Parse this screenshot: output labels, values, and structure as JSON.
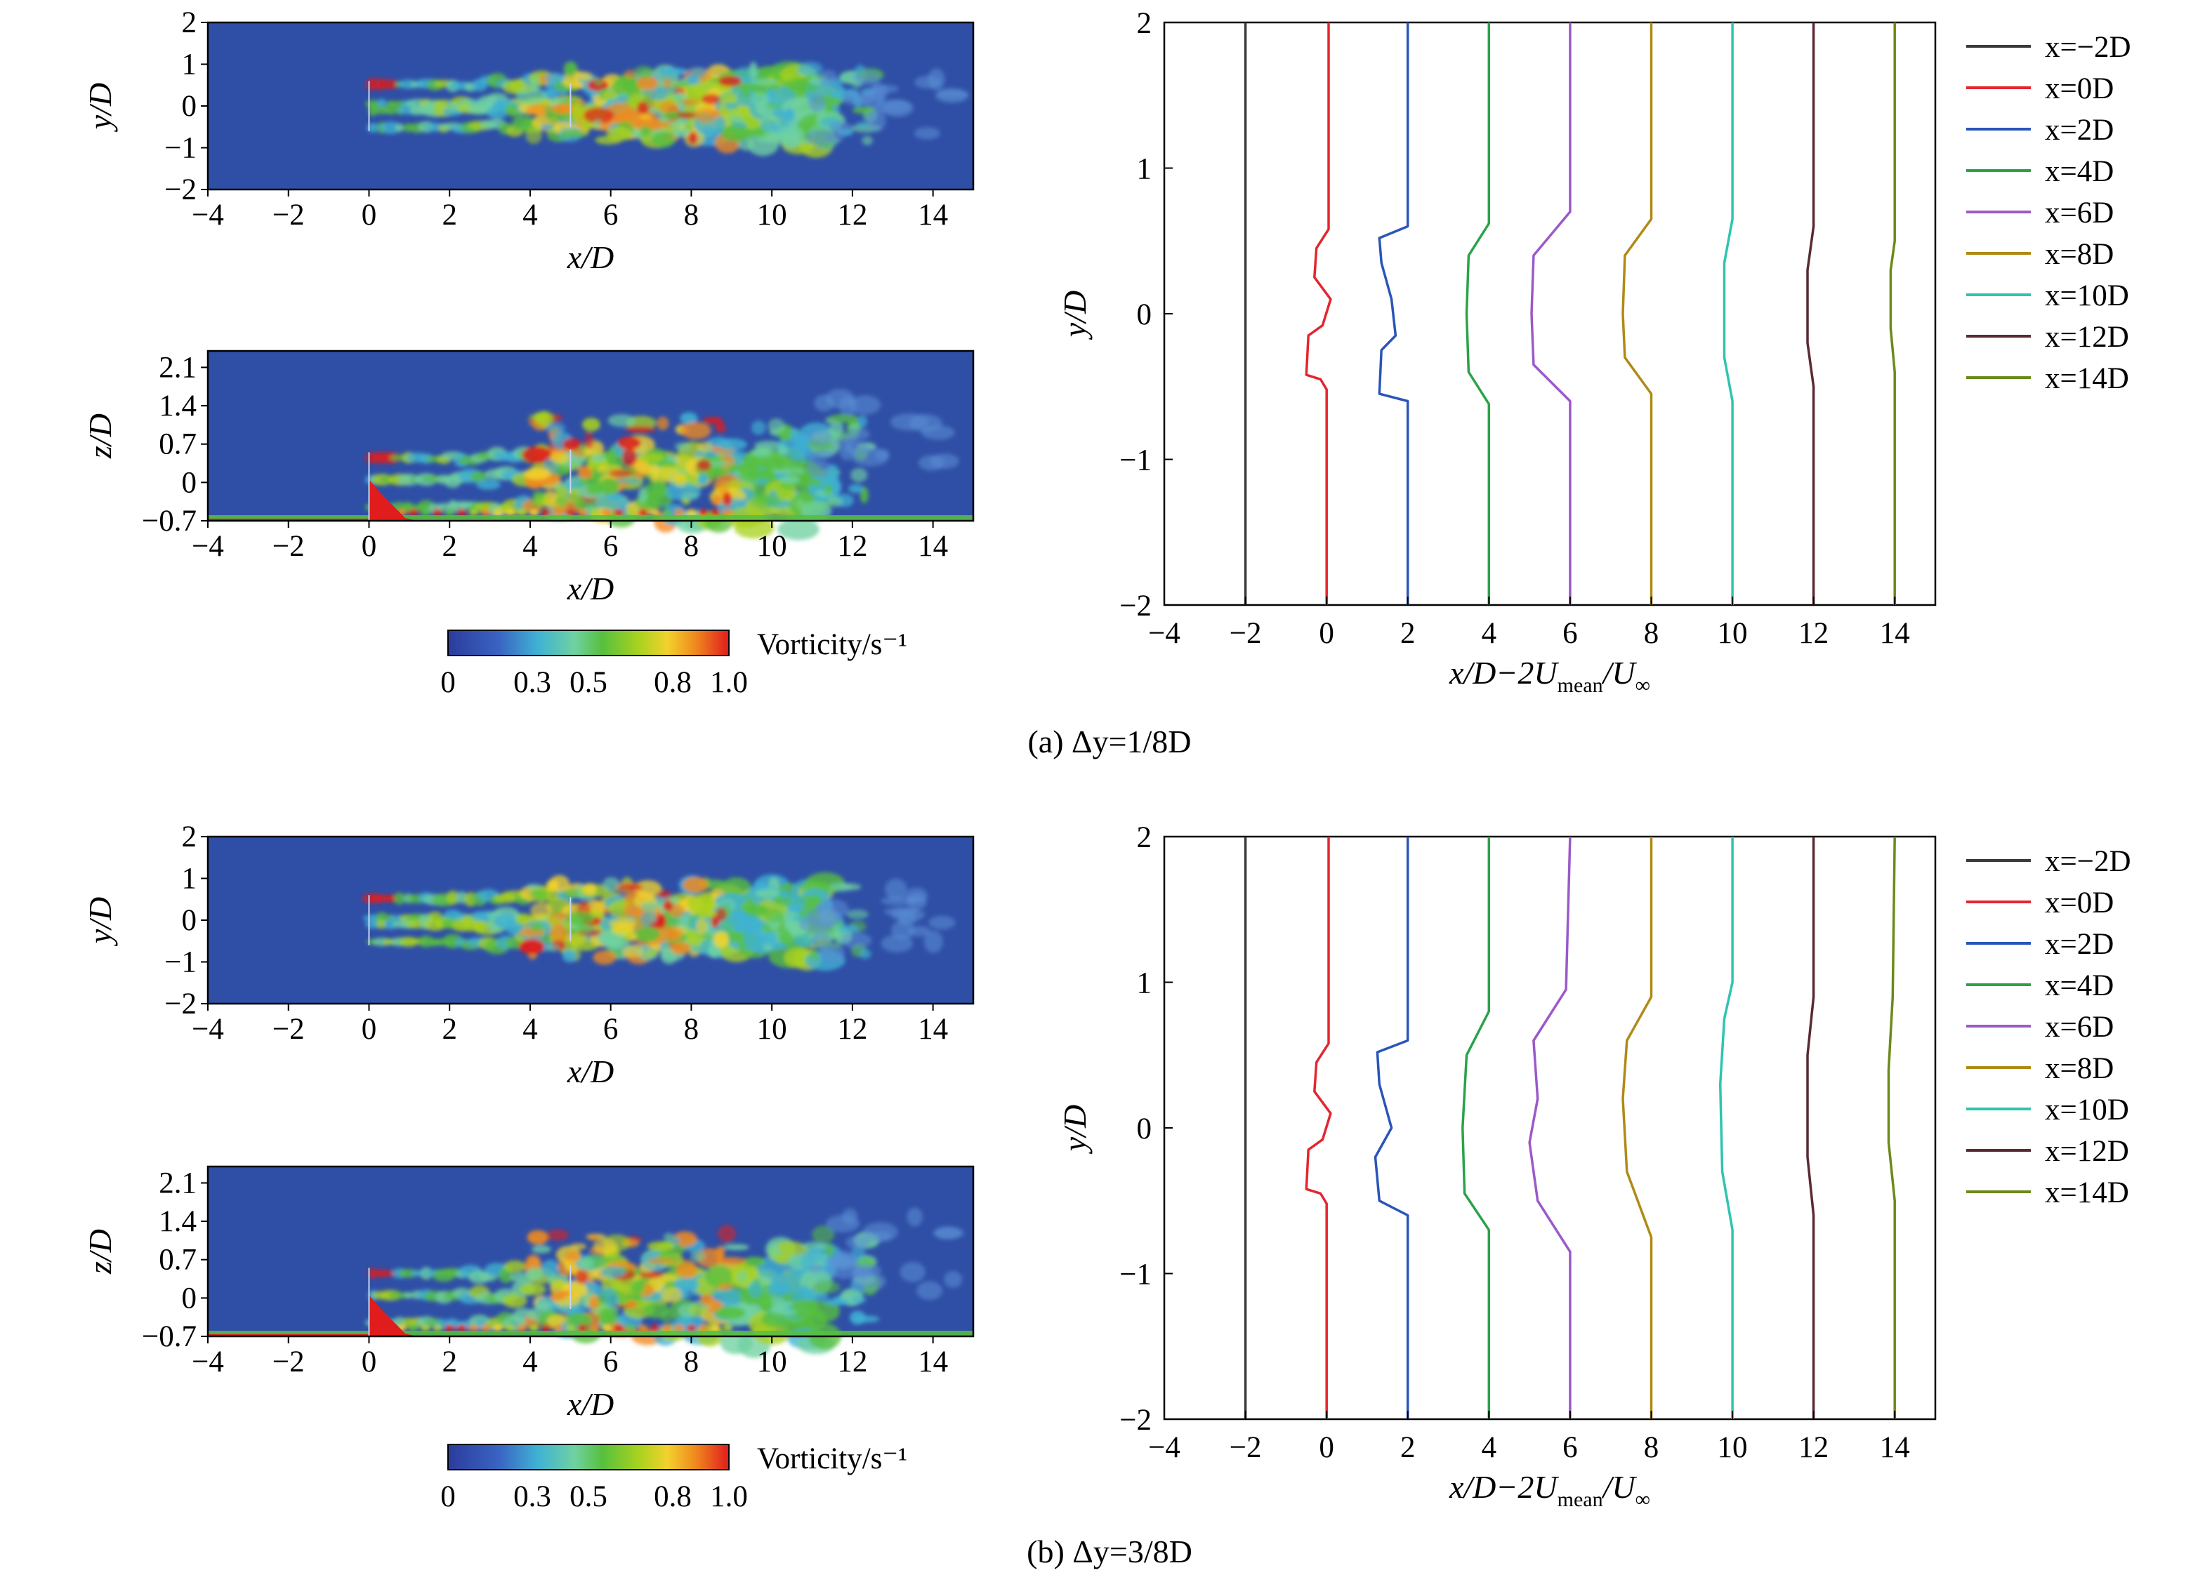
{
  "colors": {
    "background_field": "#2f4fa6",
    "axis": "#000000",
    "series_colors": [
      "#3a3a3a",
      "#e3262f",
      "#2a55b8",
      "#2ba24a",
      "#9b59c9",
      "#b08a16",
      "#2fc4b0",
      "#5a2a32",
      "#6b8a1a"
    ]
  },
  "panels": [
    {
      "caption": "(a) Δy=1/8D",
      "contour_top": {
        "ylabel": "y/D",
        "xlabel": "x/D",
        "yticks": [
          "2",
          "1",
          "0",
          "−1",
          "−2"
        ],
        "xticks": [
          "−4",
          "−2",
          "0",
          "2",
          "4",
          "6",
          "8",
          "10",
          "12",
          "14"
        ]
      },
      "contour_bottom": {
        "ylabel": "z/D",
        "xlabel": "x/D",
        "yticks": [
          "2.1",
          "1.4",
          "0.7",
          "0",
          "−0.7"
        ],
        "xticks": [
          "−4",
          "−2",
          "0",
          "2",
          "4",
          "6",
          "8",
          "10",
          "12",
          "14"
        ]
      },
      "colorbar": {
        "label": "Vorticity/s⁻¹",
        "ticks": [
          "0",
          "0.3",
          "0.5",
          "0.8",
          "1.0"
        ]
      },
      "profile": {
        "ylabel": "y/D",
        "xlabel": "x/D−2U",
        "xlabel_sub1": "mean",
        "xlabel_mid": "/U",
        "xlabel_sub2": "∞",
        "legend": [
          "x=−2D",
          "x=0D",
          "x=2D",
          "x=4D",
          "x=6D",
          "x=8D",
          "x=10D",
          "x=12D",
          "x=14D"
        ]
      }
    },
    {
      "caption": "(b) Δy=3/8D",
      "contour_top": {
        "ylabel": "y/D",
        "xlabel": "x/D",
        "yticks": [
          "2",
          "1",
          "0",
          "−1",
          "−2"
        ],
        "xticks": [
          "−4",
          "−2",
          "0",
          "2",
          "4",
          "6",
          "8",
          "10",
          "12",
          "14"
        ]
      },
      "contour_bottom": {
        "ylabel": "z/D",
        "xlabel": "x/D",
        "yticks": [
          "2.1",
          "1.4",
          "0.7",
          "0",
          "−0.7"
        ],
        "xticks": [
          "−4",
          "−2",
          "0",
          "2",
          "4",
          "6",
          "8",
          "10",
          "12",
          "14"
        ]
      },
      "colorbar": {
        "label": "Vorticity/s⁻¹",
        "ticks": [
          "0",
          "0.3",
          "0.5",
          "0.8",
          "1.0"
        ]
      },
      "profile": {
        "ylabel": "y/D",
        "xlabel": "x/D−2U",
        "xlabel_sub1": "mean",
        "xlabel_mid": "/U",
        "xlabel_sub2": "∞",
        "legend": [
          "x=−2D",
          "x=0D",
          "x=2D",
          "x=4D",
          "x=6D",
          "x=8D",
          "x=10D",
          "x=12D",
          "x=14D"
        ]
      }
    }
  ],
  "chart_data": [
    {
      "type": "line",
      "xlim": [
        -4,
        15
      ],
      "ylim": [
        -2,
        2
      ],
      "xticks": [
        -4,
        -2,
        0,
        2,
        4,
        6,
        8,
        10,
        12,
        14
      ],
      "yticks": [
        -2,
        -1,
        0,
        1,
        2
      ],
      "grid": false,
      "legend_position": "right",
      "series": [
        {
          "name": "x=−2D",
          "points": [
            [
              -2.0,
              -2.0
            ],
            [
              -2.0,
              2.0
            ]
          ]
        },
        {
          "name": "x=0D",
          "points": [
            [
              0.0,
              -2.0
            ],
            [
              0.0,
              -0.52
            ],
            [
              -0.15,
              -0.45
            ],
            [
              -0.5,
              -0.42
            ],
            [
              -0.45,
              -0.15
            ],
            [
              -0.1,
              -0.08
            ],
            [
              0.1,
              0.1
            ],
            [
              -0.3,
              0.25
            ],
            [
              -0.25,
              0.45
            ],
            [
              0.05,
              0.58
            ],
            [
              0.05,
              2.0
            ]
          ]
        },
        {
          "name": "x=2D",
          "points": [
            [
              2.0,
              -2.0
            ],
            [
              2.0,
              -0.6
            ],
            [
              1.3,
              -0.55
            ],
            [
              1.35,
              -0.25
            ],
            [
              1.7,
              -0.15
            ],
            [
              1.6,
              0.1
            ],
            [
              1.35,
              0.35
            ],
            [
              1.3,
              0.52
            ],
            [
              2.0,
              0.6
            ],
            [
              2.0,
              2.0
            ]
          ]
        },
        {
          "name": "x=4D",
          "points": [
            [
              4.0,
              -2.0
            ],
            [
              4.0,
              -0.62
            ],
            [
              3.5,
              -0.4
            ],
            [
              3.45,
              0.0
            ],
            [
              3.5,
              0.4
            ],
            [
              4.0,
              0.62
            ],
            [
              4.0,
              2.0
            ]
          ]
        },
        {
          "name": "x=6D",
          "points": [
            [
              6.0,
              -2.0
            ],
            [
              6.0,
              -0.6
            ],
            [
              5.1,
              -0.35
            ],
            [
              5.05,
              0.0
            ],
            [
              5.1,
              0.4
            ],
            [
              6.0,
              0.7
            ],
            [
              6.0,
              2.0
            ]
          ]
        },
        {
          "name": "x=8D",
          "points": [
            [
              8.0,
              -2.0
            ],
            [
              8.0,
              -0.55
            ],
            [
              7.35,
              -0.3
            ],
            [
              7.3,
              0.0
            ],
            [
              7.35,
              0.4
            ],
            [
              8.0,
              0.65
            ],
            [
              8.0,
              2.0
            ]
          ]
        },
        {
          "name": "x=10D",
          "points": [
            [
              10.0,
              -2.0
            ],
            [
              10.0,
              -0.6
            ],
            [
              9.8,
              -0.3
            ],
            [
              9.8,
              0.35
            ],
            [
              10.0,
              0.65
            ],
            [
              10.0,
              2.0
            ]
          ]
        },
        {
          "name": "x=12D",
          "points": [
            [
              12.0,
              -2.0
            ],
            [
              12.0,
              -0.5
            ],
            [
              11.85,
              -0.2
            ],
            [
              11.85,
              0.3
            ],
            [
              12.0,
              0.6
            ],
            [
              12.0,
              2.0
            ]
          ]
        },
        {
          "name": "x=14D",
          "points": [
            [
              14.0,
              -2.0
            ],
            [
              14.0,
              -0.4
            ],
            [
              13.9,
              -0.1
            ],
            [
              13.9,
              0.3
            ],
            [
              14.0,
              0.5
            ],
            [
              14.0,
              2.0
            ]
          ]
        }
      ]
    },
    {
      "type": "line",
      "xlim": [
        -4,
        15
      ],
      "ylim": [
        -2,
        2
      ],
      "xticks": [
        -4,
        -2,
        0,
        2,
        4,
        6,
        8,
        10,
        12,
        14
      ],
      "yticks": [
        -2,
        -1,
        0,
        1,
        2
      ],
      "grid": false,
      "legend_position": "right",
      "series": [
        {
          "name": "x=−2D",
          "points": [
            [
              -2.0,
              -2.0
            ],
            [
              -2.0,
              2.0
            ]
          ]
        },
        {
          "name": "x=0D",
          "points": [
            [
              0.0,
              -2.0
            ],
            [
              0.0,
              -0.52
            ],
            [
              -0.15,
              -0.45
            ],
            [
              -0.5,
              -0.42
            ],
            [
              -0.45,
              -0.15
            ],
            [
              -0.1,
              -0.08
            ],
            [
              0.1,
              0.1
            ],
            [
              -0.3,
              0.25
            ],
            [
              -0.25,
              0.45
            ],
            [
              0.05,
              0.58
            ],
            [
              0.05,
              2.0
            ]
          ]
        },
        {
          "name": "x=2D",
          "points": [
            [
              2.0,
              -2.0
            ],
            [
              2.0,
              -0.6
            ],
            [
              1.3,
              -0.5
            ],
            [
              1.2,
              -0.2
            ],
            [
              1.6,
              0.0
            ],
            [
              1.3,
              0.3
            ],
            [
              1.25,
              0.52
            ],
            [
              2.0,
              0.6
            ],
            [
              2.0,
              2.0
            ]
          ]
        },
        {
          "name": "x=4D",
          "points": [
            [
              4.0,
              -2.0
            ],
            [
              4.0,
              -0.7
            ],
            [
              3.4,
              -0.45
            ],
            [
              3.35,
              0.0
            ],
            [
              3.45,
              0.5
            ],
            [
              4.0,
              0.8
            ],
            [
              4.0,
              2.0
            ]
          ]
        },
        {
          "name": "x=6D",
          "points": [
            [
              6.0,
              -2.0
            ],
            [
              6.0,
              -0.85
            ],
            [
              5.2,
              -0.5
            ],
            [
              5.0,
              -0.1
            ],
            [
              5.2,
              0.2
            ],
            [
              5.1,
              0.6
            ],
            [
              5.9,
              0.95
            ],
            [
              6.0,
              2.0
            ]
          ]
        },
        {
          "name": "x=8D",
          "points": [
            [
              8.0,
              -2.0
            ],
            [
              8.0,
              -0.75
            ],
            [
              7.4,
              -0.3
            ],
            [
              7.3,
              0.2
            ],
            [
              7.4,
              0.6
            ],
            [
              8.0,
              0.9
            ],
            [
              8.0,
              2.0
            ]
          ]
        },
        {
          "name": "x=10D",
          "points": [
            [
              10.0,
              -2.0
            ],
            [
              10.0,
              -0.7
            ],
            [
              9.75,
              -0.3
            ],
            [
              9.7,
              0.3
            ],
            [
              9.8,
              0.75
            ],
            [
              10.0,
              1.0
            ],
            [
              10.0,
              2.0
            ]
          ]
        },
        {
          "name": "x=12D",
          "points": [
            [
              12.0,
              -2.0
            ],
            [
              12.0,
              -0.6
            ],
            [
              11.85,
              -0.2
            ],
            [
              11.85,
              0.5
            ],
            [
              12.0,
              0.9
            ],
            [
              12.0,
              2.0
            ]
          ]
        },
        {
          "name": "x=14D",
          "points": [
            [
              14.0,
              -2.0
            ],
            [
              14.0,
              -0.5
            ],
            [
              13.85,
              -0.1
            ],
            [
              13.85,
              0.4
            ],
            [
              13.95,
              0.9
            ],
            [
              14.0,
              2.0
            ]
          ]
        }
      ]
    }
  ]
}
